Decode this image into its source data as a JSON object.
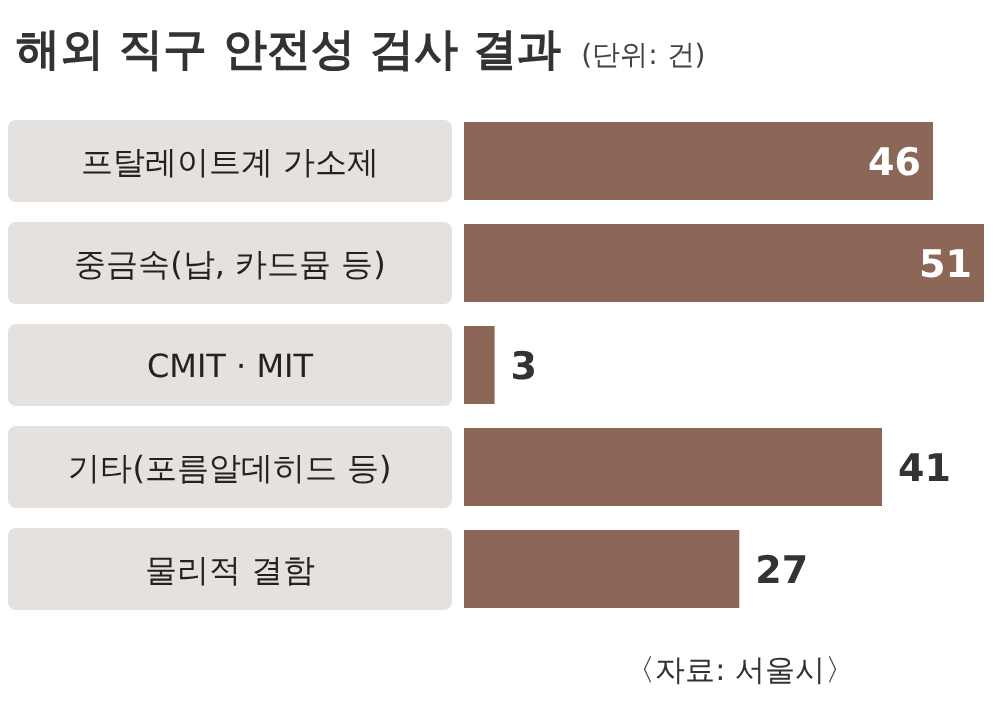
{
  "chart_data": {
    "type": "bar",
    "orientation": "horizontal",
    "title": "해외 직구 안전성 검사 결과",
    "subtitle": "(단위: 건)",
    "categories": [
      "프탈레이트계 가소제",
      "중금속(납, 카드뮴 등)",
      "CMIT · MIT",
      "기타(포름알데히드 등)",
      "물리적 결함"
    ],
    "values": [
      46,
      51,
      3,
      41,
      27
    ],
    "color": "#8c6656",
    "data_labels": true,
    "annotations": [
      "〈자료: 서울시〉"
    ]
  }
}
